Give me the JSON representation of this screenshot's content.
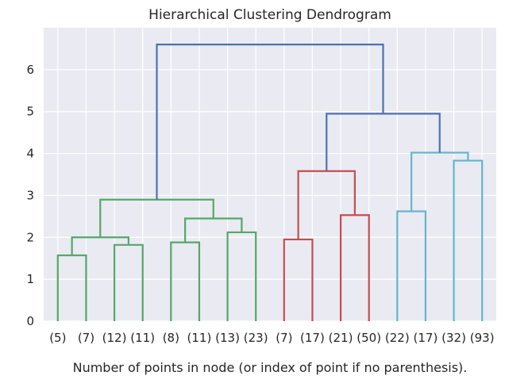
{
  "chart_data": {
    "type": "dendrogram",
    "title": "Hierarchical Clustering Dendrogram",
    "xlabel": "Number of points in node (or index of point if no parenthesis).",
    "ylabel": "",
    "ylim": [
      0,
      7
    ],
    "y_ticks": [
      0,
      1,
      2,
      3,
      4,
      5,
      6
    ],
    "leaf_labels": [
      "(5)",
      "(7)",
      "(12)",
      "(11)",
      "(8)",
      "(11)",
      "(13)",
      "(23)",
      "(7)",
      "(17)",
      "(21)",
      "(50)",
      "(22)",
      "(17)",
      "(32)",
      "(93)"
    ],
    "grid": true,
    "background": "#eaeaf2",
    "colors": {
      "C0": "#4c72b0",
      "C1": "#55a868",
      "C2": "#c44e52",
      "C3": "#64b5cd"
    },
    "links": [
      {
        "left": "leaf:0",
        "right": "leaf:1",
        "height": 1.57,
        "color": "C1"
      },
      {
        "left": "leaf:2",
        "right": "leaf:3",
        "height": 1.82,
        "color": "C1"
      },
      {
        "left": "link:0",
        "right": "link:1",
        "height": 2.0,
        "color": "C1"
      },
      {
        "left": "leaf:4",
        "right": "leaf:5",
        "height": 1.88,
        "color": "C1"
      },
      {
        "left": "leaf:6",
        "right": "leaf:7",
        "height": 2.12,
        "color": "C1"
      },
      {
        "left": "link:3",
        "right": "link:4",
        "height": 2.45,
        "color": "C1"
      },
      {
        "left": "link:2",
        "right": "link:5",
        "height": 2.9,
        "color": "C1"
      },
      {
        "left": "leaf:8",
        "right": "leaf:9",
        "height": 1.95,
        "color": "C2"
      },
      {
        "left": "leaf:10",
        "right": "leaf:11",
        "height": 2.53,
        "color": "C2"
      },
      {
        "left": "link:7",
        "right": "link:8",
        "height": 3.58,
        "color": "C2"
      },
      {
        "left": "leaf:12",
        "right": "leaf:13",
        "height": 2.62,
        "color": "C3"
      },
      {
        "left": "leaf:14",
        "right": "leaf:15",
        "height": 3.83,
        "color": "C3"
      },
      {
        "left": "link:10",
        "right": "link:11",
        "height": 4.02,
        "color": "C3"
      },
      {
        "left": "link:9",
        "right": "link:12",
        "height": 4.95,
        "color": "C0"
      },
      {
        "left": "link:6",
        "right": "link:13",
        "height": 6.6,
        "color": "C0"
      }
    ]
  }
}
